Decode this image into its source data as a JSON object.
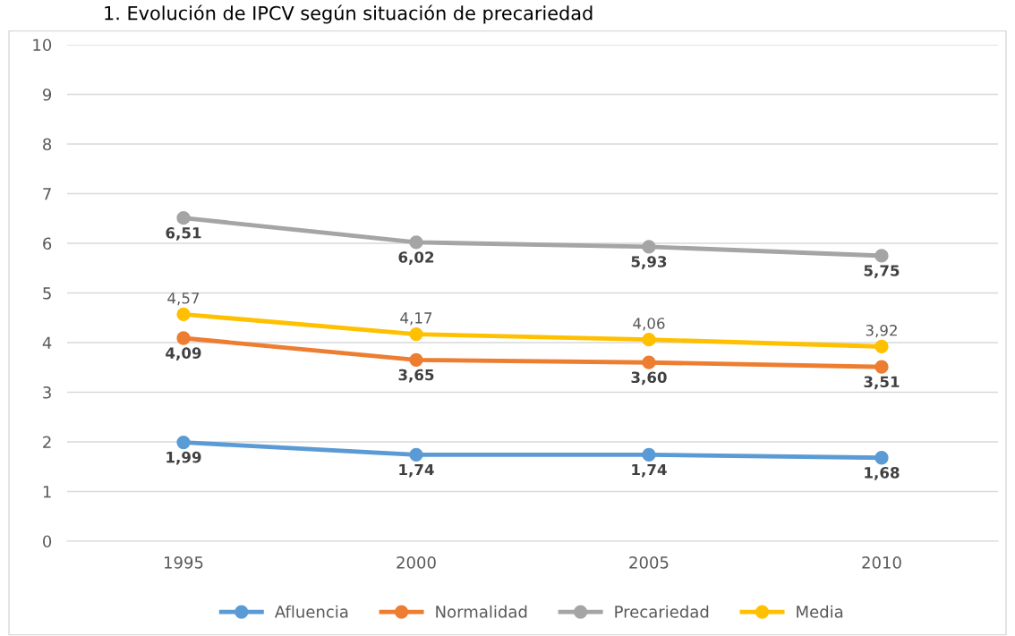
{
  "chart_data": {
    "type": "line",
    "title": "1. Evolución de IPCV según situación de precariedad",
    "categories": [
      "1995",
      "2000",
      "2005",
      "2010"
    ],
    "ylim": [
      0,
      10
    ],
    "yticks": [
      0,
      1,
      2,
      3,
      4,
      5,
      6,
      7,
      8,
      9,
      10
    ],
    "grid": "y",
    "legend": "bottom",
    "marker": "circle",
    "line_style": "solid",
    "series": [
      {
        "name": "Afluencia",
        "color": "#5b9bd5",
        "values": [
          1.99,
          1.74,
          1.74,
          1.68
        ],
        "value_labels": [
          "1,99",
          "1,74",
          "1,74",
          "1,68"
        ]
      },
      {
        "name": "Normalidad",
        "color": "#ed7d31",
        "values": [
          4.09,
          3.65,
          3.6,
          3.51
        ],
        "value_labels": [
          "4,09",
          "3,65",
          "3,60",
          "3,51"
        ]
      },
      {
        "name": "Precariedad",
        "color": "#a5a5a5",
        "values": [
          6.51,
          6.02,
          5.93,
          5.75
        ],
        "value_labels": [
          "6,51",
          "6,02",
          "5,93",
          "5,75"
        ]
      },
      {
        "name": "Media",
        "color": "#ffc000",
        "values": [
          4.57,
          4.17,
          4.06,
          3.92
        ],
        "value_labels": [
          "4,57",
          "4,17",
          "4,06",
          "3,92"
        ]
      }
    ]
  }
}
